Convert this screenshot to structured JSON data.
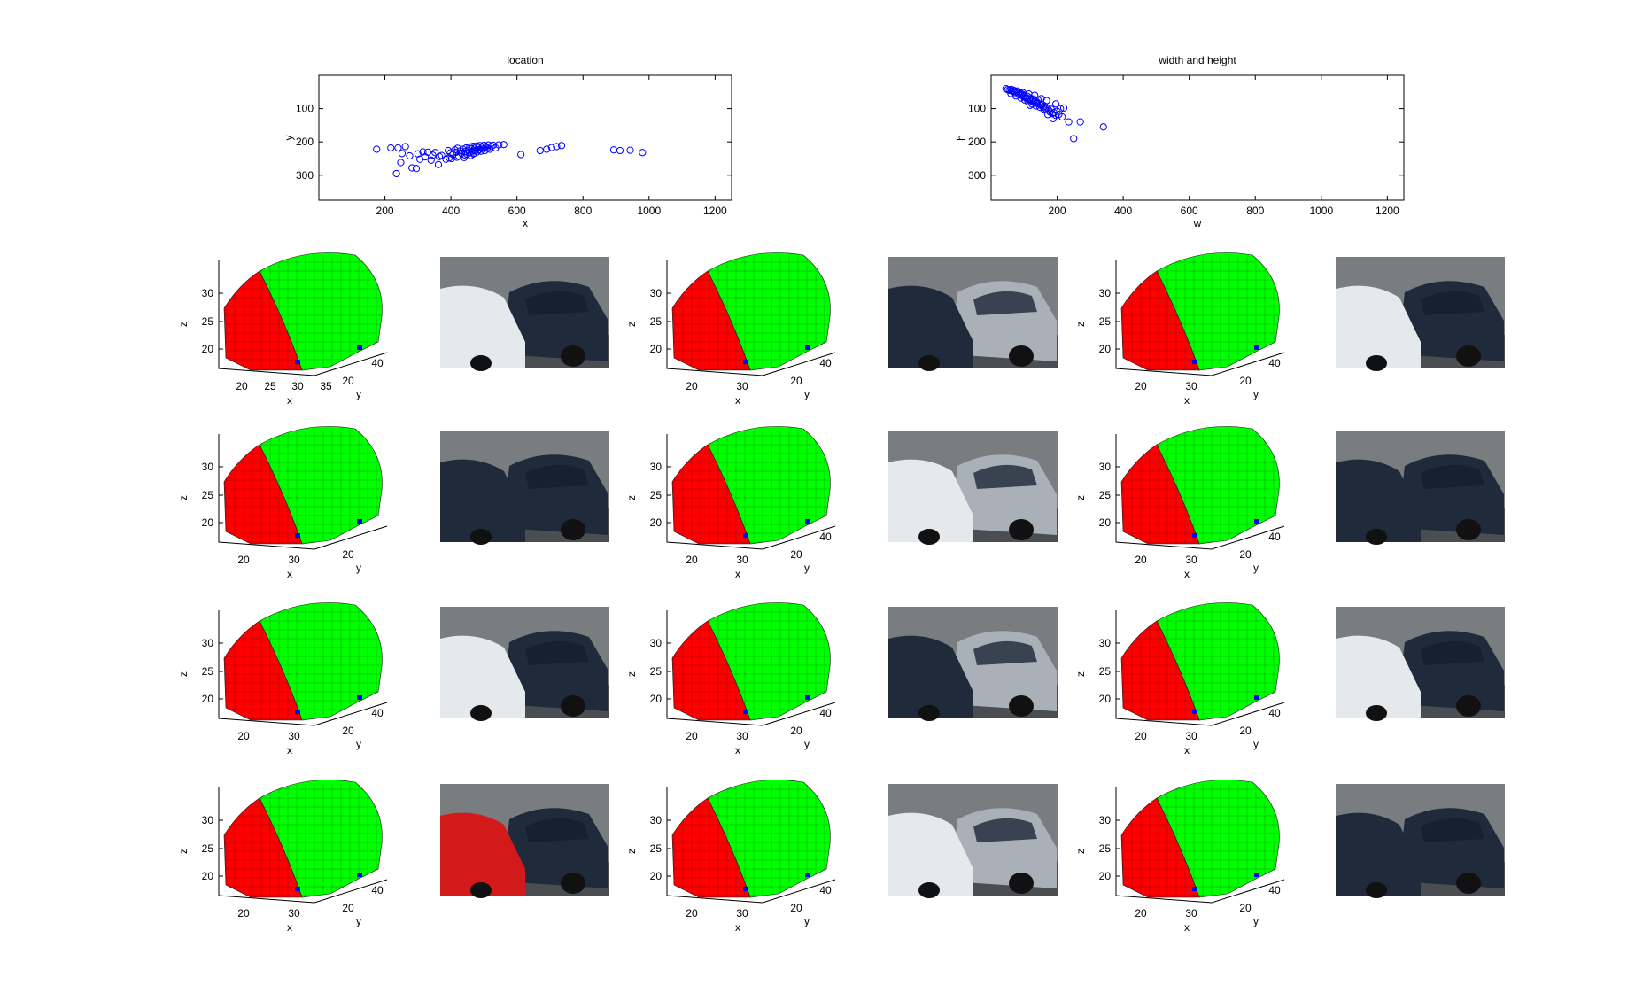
{
  "chart_data": [
    {
      "type": "scatter",
      "title": "location",
      "xlabel": "x",
      "ylabel": "y",
      "xlim": [
        0,
        1250
      ],
      "ylim": [
        0,
        375
      ],
      "y_reversed": true,
      "xticks": [
        200,
        400,
        600,
        800,
        1000,
        1200
      ],
      "yticks": [
        100,
        200,
        300
      ],
      "marker": "open-circle",
      "color": "#0000ff",
      "points": [
        [
          175,
          222
        ],
        [
          218,
          218
        ],
        [
          240,
          218
        ],
        [
          262,
          214
        ],
        [
          252,
          235
        ],
        [
          235,
          295
        ],
        [
          248,
          262
        ],
        [
          275,
          242
        ],
        [
          282,
          278
        ],
        [
          295,
          280
        ],
        [
          300,
          236
        ],
        [
          306,
          252
        ],
        [
          315,
          230
        ],
        [
          322,
          245
        ],
        [
          340,
          255
        ],
        [
          345,
          240
        ],
        [
          352,
          232
        ],
        [
          362,
          268
        ],
        [
          372,
          241
        ],
        [
          385,
          252
        ],
        [
          392,
          226
        ],
        [
          398,
          233
        ],
        [
          402,
          250
        ],
        [
          406,
          238
        ],
        [
          412,
          224
        ],
        [
          416,
          231
        ],
        [
          420,
          219
        ],
        [
          424,
          243
        ],
        [
          428,
          227
        ],
        [
          432,
          234
        ],
        [
          436,
          222
        ],
        [
          440,
          247
        ],
        [
          443,
          229
        ],
        [
          446,
          218
        ],
        [
          449,
          237
        ],
        [
          452,
          225
        ],
        [
          455,
          232
        ],
        [
          457,
          215
        ],
        [
          460,
          241
        ],
        [
          462,
          221
        ],
        [
          465,
          228
        ],
        [
          467,
          213
        ],
        [
          470,
          234
        ],
        [
          472,
          219
        ],
        [
          475,
          226
        ],
        [
          478,
          212
        ],
        [
          480,
          230
        ],
        [
          483,
          217
        ],
        [
          486,
          223
        ],
        [
          488,
          211
        ],
        [
          491,
          228
        ],
        [
          494,
          216
        ],
        [
          497,
          222
        ],
        [
          500,
          210
        ],
        [
          503,
          226
        ],
        [
          506,
          214
        ],
        [
          510,
          219
        ],
        [
          514,
          209
        ],
        [
          518,
          222
        ],
        [
          522,
          213
        ],
        [
          528,
          210
        ],
        [
          535,
          218
        ],
        [
          545,
          209
        ],
        [
          560,
          208
        ],
        [
          612,
          238
        ],
        [
          670,
          226
        ],
        [
          690,
          222
        ],
        [
          705,
          217
        ],
        [
          720,
          214
        ],
        [
          735,
          211
        ],
        [
          893,
          224
        ],
        [
          912,
          226
        ],
        [
          943,
          225
        ],
        [
          980,
          232
        ],
        [
          330,
          231
        ],
        [
          365,
          244
        ],
        [
          395,
          248
        ],
        [
          418,
          246
        ],
        [
          442,
          239
        ],
        [
          468,
          236
        ]
      ]
    },
    {
      "type": "scatter",
      "title": "width and height",
      "xlabel": "w",
      "ylabel": "h",
      "xlim": [
        0,
        1250
      ],
      "ylim": [
        0,
        375
      ],
      "y_reversed": true,
      "xticks": [
        200,
        400,
        600,
        800,
        1000,
        1200
      ],
      "yticks": [
        100,
        200,
        300
      ],
      "marker": "open-circle",
      "color": "#0000ff",
      "points": [
        [
          45,
          40
        ],
        [
          50,
          43
        ],
        [
          55,
          45
        ],
        [
          60,
          42
        ],
        [
          65,
          48
        ],
        [
          70,
          46
        ],
        [
          72,
          52
        ],
        [
          78,
          50
        ],
        [
          82,
          55
        ],
        [
          85,
          58
        ],
        [
          88,
          53
        ],
        [
          92,
          60
        ],
        [
          95,
          57
        ],
        [
          98,
          64
        ],
        [
          100,
          62
        ],
        [
          105,
          66
        ],
        [
          108,
          70
        ],
        [
          110,
          63
        ],
        [
          115,
          72
        ],
        [
          118,
          68
        ],
        [
          120,
          75
        ],
        [
          125,
          78
        ],
        [
          128,
          71
        ],
        [
          130,
          80
        ],
        [
          135,
          77
        ],
        [
          138,
          84
        ],
        [
          140,
          82
        ],
        [
          145,
          86
        ],
        [
          150,
          90
        ],
        [
          155,
          88
        ],
        [
          158,
          95
        ],
        [
          162,
          92
        ],
        [
          165,
          100
        ],
        [
          170,
          98
        ],
        [
          175,
          105
        ],
        [
          178,
          110
        ],
        [
          182,
          102
        ],
        [
          185,
          115
        ],
        [
          190,
          112
        ],
        [
          195,
          120
        ],
        [
          200,
          108
        ],
        [
          205,
          118
        ],
        [
          210,
          100
        ],
        [
          215,
          125
        ],
        [
          220,
          98
        ],
        [
          235,
          140
        ],
        [
          250,
          190
        ],
        [
          270,
          140
        ],
        [
          340,
          155
        ],
        [
          60,
          55
        ],
        [
          75,
          62
        ],
        [
          90,
          68
        ],
        [
          102,
          74
        ],
        [
          112,
          80
        ],
        [
          124,
          86
        ],
        [
          136,
          92
        ],
        [
          148,
          96
        ],
        [
          160,
          104
        ],
        [
          172,
          118
        ],
        [
          188,
          130
        ],
        [
          66,
          44
        ],
        [
          80,
          47
        ],
        [
          96,
          52
        ],
        [
          114,
          56
        ],
        [
          132,
          60
        ],
        [
          152,
          70
        ],
        [
          168,
          76
        ],
        [
          196,
          86
        ],
        [
          118,
          90
        ],
        [
          142,
          74
        ]
      ]
    },
    {
      "type": "voxel-grid",
      "panels": [
        {
          "row": 1,
          "col": 1,
          "xticks": [
            "20",
            "25",
            "30",
            "35"
          ],
          "yticks": [
            "20",
            "40"
          ],
          "zticks": [
            "30",
            "25",
            "20"
          ],
          "xlabel": "x",
          "ylabel": "y",
          "zlabel": "z"
        },
        {
          "row": 1,
          "col": 2,
          "xticks": [
            "20",
            "30"
          ],
          "yticks": [
            "20",
            "40"
          ],
          "zticks": [
            "30",
            "25",
            "20"
          ],
          "xlabel": "x",
          "ylabel": "y",
          "zlabel": "z"
        },
        {
          "row": 1,
          "col": 3,
          "xticks": [
            "20",
            "30"
          ],
          "yticks": [
            "20",
            "40"
          ],
          "zticks": [
            "30",
            "25",
            "20"
          ],
          "xlabel": "x",
          "ylabel": "y",
          "zlabel": "z"
        },
        {
          "row": 2,
          "col": 1,
          "xticks": [
            "20",
            "30"
          ],
          "yticks": [
            "20"
          ],
          "zticks": [
            "30",
            "25",
            "20"
          ],
          "xlabel": "x",
          "ylabel": "y",
          "zlabel": "z"
        },
        {
          "row": 2,
          "col": 2,
          "xticks": [
            "20",
            "30"
          ],
          "yticks": [
            "20",
            "40"
          ],
          "zticks": [
            "30",
            "25",
            "20"
          ],
          "xlabel": "x",
          "ylabel": "y",
          "zlabel": "z"
        },
        {
          "row": 2,
          "col": 3,
          "xticks": [
            "20",
            "30"
          ],
          "yticks": [
            "20",
            "40"
          ],
          "zticks": [
            "30",
            "25",
            "20"
          ],
          "xlabel": "x",
          "ylabel": "y",
          "zlabel": "z"
        },
        {
          "row": 3,
          "col": 1,
          "xticks": [
            "20",
            "30"
          ],
          "yticks": [
            "20",
            "40"
          ],
          "zticks": [
            "30",
            "25",
            "20"
          ],
          "xlabel": "x",
          "ylabel": "y",
          "zlabel": "z"
        },
        {
          "row": 3,
          "col": 2,
          "xticks": [
            "20",
            "30"
          ],
          "yticks": [
            "20",
            "40"
          ],
          "zticks": [
            "30",
            "25",
            "20"
          ],
          "xlabel": "x",
          "ylabel": "y",
          "zlabel": "z"
        },
        {
          "row": 3,
          "col": 3,
          "xticks": [
            "20",
            "30"
          ],
          "yticks": [
            "20",
            "40"
          ],
          "zticks": [
            "30",
            "25",
            "20"
          ],
          "xlabel": "x",
          "ylabel": "y",
          "zlabel": "z"
        },
        {
          "row": 4,
          "col": 1,
          "xticks": [
            "20",
            "30"
          ],
          "yticks": [
            "20",
            "40"
          ],
          "zticks": [
            "30",
            "25",
            "20"
          ],
          "xlabel": "x",
          "ylabel": "y",
          "zlabel": "z"
        },
        {
          "row": 4,
          "col": 2,
          "xticks": [
            "20",
            "30"
          ],
          "yticks": [
            "20",
            "40"
          ],
          "zticks": [
            "30",
            "25",
            "20"
          ],
          "xlabel": "x",
          "ylabel": "y",
          "zlabel": "z"
        },
        {
          "row": 4,
          "col": 3,
          "xticks": [
            "20",
            "30"
          ],
          "yticks": [
            "20",
            "40"
          ],
          "zticks": [
            "30",
            "25",
            "20"
          ],
          "xlabel": "x",
          "ylabel": "y",
          "zlabel": "z"
        }
      ],
      "colors": {
        "front": "#ff0000",
        "body": "#00ff00",
        "edge": "#1a1a1a",
        "base": "#0000ff"
      }
    }
  ],
  "photos": {
    "count": 12,
    "palette": {
      "sky": "#7a7d80",
      "car_dark": "#1f2a3a",
      "car_silver": "#a9b0b8",
      "road": "#4a4d52",
      "highlight": "#e6e9ec",
      "red": "#d21a1a"
    }
  }
}
